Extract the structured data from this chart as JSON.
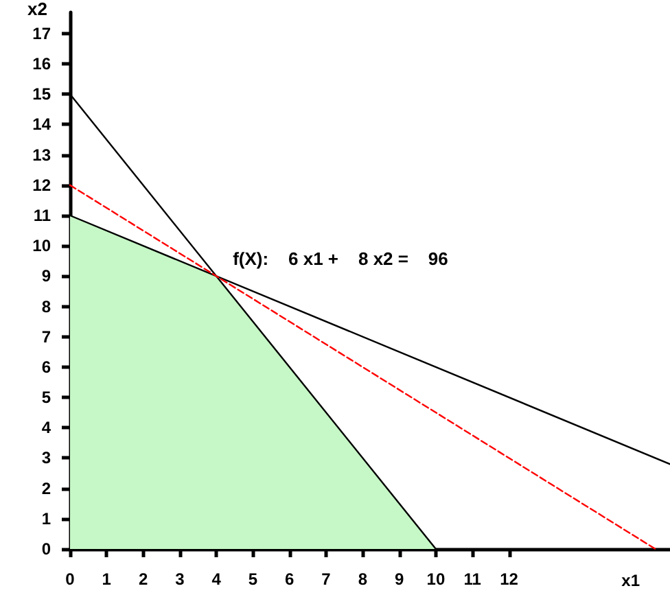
{
  "chart_data": {
    "type": "line",
    "xlabel": "x1",
    "ylabel": "x2",
    "xlim": [
      0,
      16.4
    ],
    "ylim": [
      0,
      17.7
    ],
    "xticks": [
      0,
      1,
      2,
      3,
      4,
      5,
      6,
      7,
      8,
      9,
      10,
      11,
      12
    ],
    "yticks": [
      0,
      1,
      2,
      3,
      4,
      5,
      6,
      7,
      8,
      9,
      10,
      11,
      12,
      13,
      14,
      15,
      16,
      17
    ],
    "grid": false,
    "marker": "none",
    "series": [
      {
        "type": "area",
        "color": "#c6f7c6",
        "x": [
          0,
          0,
          4,
          10
        ],
        "values": [
          0,
          11,
          9,
          0
        ]
      },
      {
        "color": "#000000",
        "x": [
          0,
          10
        ],
        "values": [
          15,
          0
        ],
        "line_style": "solid"
      },
      {
        "color": "#000000",
        "x": [
          0,
          16.4
        ],
        "values": [
          11,
          2.8
        ],
        "line_style": "solid"
      },
      {
        "color": "#ff0000",
        "x": [
          0,
          16
        ],
        "values": [
          12,
          0
        ],
        "line_style": "dashed"
      }
    ],
    "annotations": [
      {
        "text": "f(X):    6 x1 +    8 x2 =    96",
        "x": 4,
        "y": 9
      }
    ]
  }
}
